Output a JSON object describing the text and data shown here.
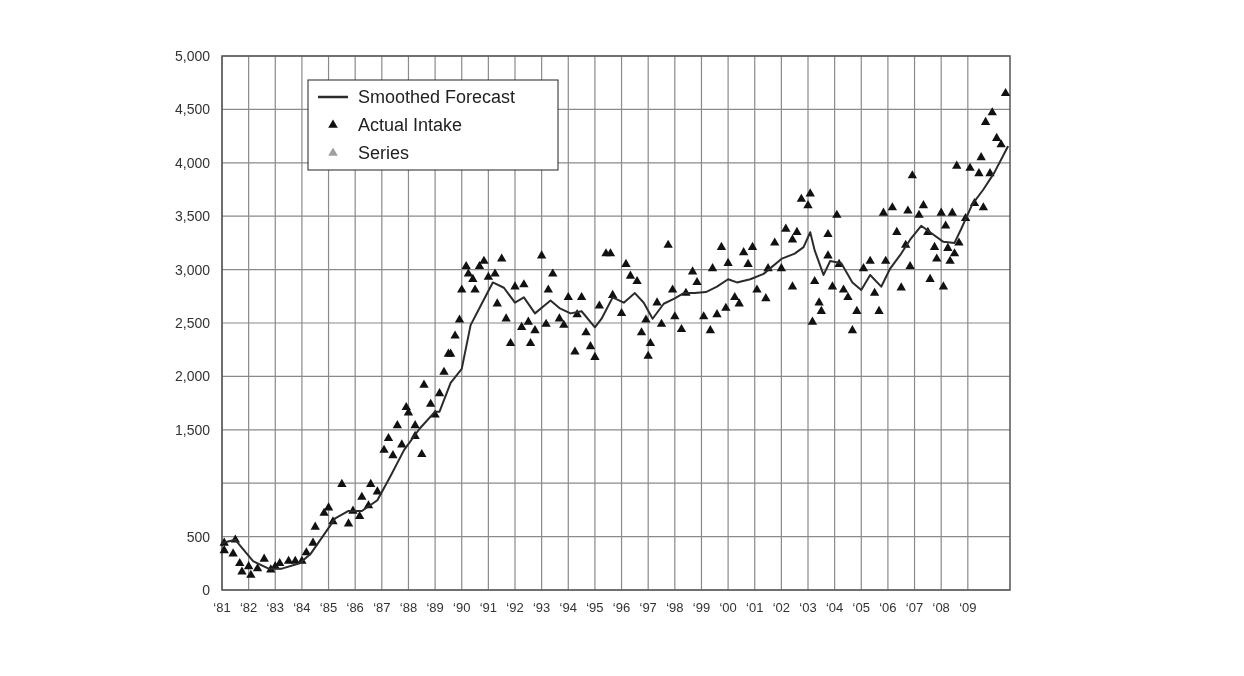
{
  "chart_data": {
    "type": "line",
    "grid": true,
    "legend": "top left",
    "xlim": [
      "1981-01",
      "2010-08"
    ],
    "xticks": [
      {
        "value": "1981",
        "label": "‘81"
      },
      {
        "value": "1982",
        "label": "‘82"
      },
      {
        "value": "1983",
        "label": "‘83"
      },
      {
        "value": "1984",
        "label": "‘84"
      },
      {
        "value": "1985",
        "label": "‘85"
      },
      {
        "value": "1986",
        "label": "‘86"
      },
      {
        "value": "1987",
        "label": "‘87"
      },
      {
        "value": "1988",
        "label": "‘88"
      },
      {
        "value": "1989",
        "label": "‘89"
      },
      {
        "value": "1990",
        "label": "‘90"
      },
      {
        "value": "1991",
        "label": "‘91"
      },
      {
        "value": "1992",
        "label": "‘92"
      },
      {
        "value": "1993",
        "label": "‘93"
      },
      {
        "value": "1994",
        "label": "‘94"
      },
      {
        "value": "1995",
        "label": "‘95"
      },
      {
        "value": "1996",
        "label": "‘96"
      },
      {
        "value": "1997",
        "label": "‘97"
      },
      {
        "value": "1998",
        "label": "‘98"
      },
      {
        "value": "1999",
        "label": "‘99"
      },
      {
        "value": "2000",
        "label": "‘00"
      },
      {
        "value": "2001",
        "label": "‘01"
      },
      {
        "value": "2002",
        "label": "‘02"
      },
      {
        "value": "2003",
        "label": "‘03"
      },
      {
        "value": "2004",
        "label": "‘04"
      },
      {
        "value": "2005",
        "label": "‘05"
      },
      {
        "value": "2006",
        "label": "‘06"
      },
      {
        "value": "2007",
        "label": "‘07"
      },
      {
        "value": "2008",
        "label": "‘08"
      },
      {
        "value": "2009",
        "label": "‘09"
      }
    ],
    "ylim": [
      0,
      5000
    ],
    "yticks": [
      0,
      500,
      {
        "value": 1000,
        "label": null
      },
      {
        "value": 1500,
        "label": "1,500"
      },
      {
        "value": 2000,
        "label": "2,000"
      },
      {
        "value": 2500,
        "label": "2,500"
      },
      {
        "value": 3000,
        "label": "3,000"
      },
      {
        "value": 3500,
        "label": "3,500"
      },
      {
        "value": 4000,
        "label": "4,000"
      },
      {
        "value": 4500,
        "label": "4,500"
      },
      {
        "value": 5000,
        "label": "5,000"
      }
    ],
    "series": [
      {
        "name": "Smoothed Forecast",
        "color": "#2b2b2b",
        "marker": "none",
        "line_style": "solid",
        "x": [
          "1981-01",
          "1981-07",
          "1982-03",
          "1982-10",
          "1983-04",
          "1983-12",
          "1984-05",
          "1984-10",
          "1985-04",
          "1985-10",
          "1986-04",
          "1986-11",
          "1987-05",
          "1987-11",
          "1988-06",
          "1989-01",
          "1989-03",
          "1989-08",
          "1990-01",
          "1990-05",
          "1990-10",
          "1991-03",
          "1991-08",
          "1992-01",
          "1992-05",
          "1992-10",
          "1993-02",
          "1993-05",
          "1993-09",
          "1994-02",
          "1994-07",
          "1995-01",
          "1995-04",
          "1995-09",
          "1996-02",
          "1996-07",
          "1996-11",
          "1997-03",
          "1997-08",
          "1998-01",
          "1998-05",
          "1998-10",
          "1999-03",
          "1999-08",
          "2000-01",
          "2000-05",
          "2000-11",
          "2001-05",
          "2002-01",
          "2002-07",
          "2002-11",
          "2003-02",
          "2003-04",
          "2003-08",
          "2003-11",
          "2004-04",
          "2004-09",
          "2005-01",
          "2005-05",
          "2005-10",
          "2006-02",
          "2006-07",
          "2006-11",
          "2007-04",
          "2007-08",
          "2008-02",
          "2008-07",
          "2008-10",
          "2009-03",
          "2009-08",
          "2010-01",
          "2010-07"
        ],
        "values": [
          440,
          470,
          270,
          200,
          200,
          250,
          340,
          490,
          670,
          740,
          740,
          840,
          1070,
          1310,
          1510,
          1670,
          1670,
          1940,
          2070,
          2480,
          2680,
          2880,
          2830,
          2690,
          2740,
          2590,
          2660,
          2710,
          2640,
          2590,
          2610,
          2460,
          2540,
          2740,
          2690,
          2780,
          2690,
          2540,
          2680,
          2730,
          2780,
          2780,
          2790,
          2840,
          2910,
          2880,
          2910,
          2960,
          3100,
          3150,
          3210,
          3350,
          3180,
          2950,
          3080,
          3060,
          2880,
          2810,
          2950,
          2840,
          3010,
          3150,
          3280,
          3410,
          3350,
          3260,
          3250,
          3380,
          3610,
          3750,
          3910,
          4150
        ]
      },
      {
        "name": "Actual Intake",
        "type": "scatter",
        "color": "#111111",
        "marker": "triangle",
        "x": [
          "1981-02",
          "1981-02",
          "1981-06",
          "1981-07",
          "1981-09",
          "1981-10",
          "1982-01",
          "1982-02",
          "1982-05",
          "1982-08",
          "1982-11",
          "1983-01",
          "1983-03",
          "1983-07",
          "1983-10",
          "1984-01",
          "1984-03",
          "1984-06",
          "1984-07",
          "1984-11",
          "1985-01",
          "1985-03",
          "1985-07",
          "1985-10",
          "1985-12",
          "1986-03",
          "1986-04",
          "1986-07",
          "1986-08",
          "1986-11",
          "1987-02",
          "1987-04",
          "1987-06",
          "1987-08",
          "1987-10",
          "1987-12",
          "1988-01",
          "1988-04",
          "1988-04",
          "1988-07",
          "1988-08",
          "1988-11",
          "1989-01",
          "1989-03",
          "1989-05",
          "1989-07",
          "1989-08",
          "1989-10",
          "1989-12",
          "1990-01",
          "1990-03",
          "1990-04",
          "1990-06",
          "1990-07",
          "1990-09",
          "1990-11",
          "1991-01",
          "1991-04",
          "1991-05",
          "1991-07",
          "1991-09",
          "1991-11",
          "1992-01",
          "1992-04",
          "1992-05",
          "1992-07",
          "1992-08",
          "1992-10",
          "1993-01",
          "1993-03",
          "1993-04",
          "1993-06",
          "1993-09",
          "1993-11",
          "1994-01",
          "1994-04",
          "1994-05",
          "1994-07",
          "1994-09",
          "1994-11",
          "1995-01",
          "1995-03",
          "1995-06",
          "1995-08",
          "1995-09",
          "1996-01",
          "1996-03",
          "1996-05",
          "1996-08",
          "1996-10",
          "1996-12",
          "1997-01",
          "1997-02",
          "1997-05",
          "1997-07",
          "1997-10",
          "1997-12",
          "1998-01",
          "1998-04",
          "1998-06",
          "1998-09",
          "1998-11",
          "1999-02",
          "1999-05",
          "1999-06",
          "1999-08",
          "1999-10",
          "1999-12",
          "2000-01",
          "2000-04",
          "2000-06",
          "2000-08",
          "2000-10",
          "2000-12",
          "2001-02",
          "2001-06",
          "2001-07",
          "2001-10",
          "2002-01",
          "2002-03",
          "2002-06",
          "2002-06",
          "2002-08",
          "2002-10",
          "2003-01",
          "2003-02",
          "2003-03",
          "2003-04",
          "2003-06",
          "2003-07",
          "2003-10",
          "2003-10",
          "2003-12",
          "2004-02",
          "2004-03",
          "2004-05",
          "2004-07",
          "2004-09",
          "2004-11",
          "2005-02",
          "2005-05",
          "2005-07",
          "2005-09",
          "2005-11",
          "2005-12",
          "2006-03",
          "2006-05",
          "2006-07",
          "2006-09",
          "2006-10",
          "2006-11",
          "2006-12",
          "2007-03",
          "2007-05",
          "2007-07",
          "2007-08",
          "2007-10",
          "2007-11",
          "2008-01",
          "2008-02",
          "2008-03",
          "2008-04",
          "2008-05",
          "2008-06",
          "2008-07",
          "2008-08",
          "2008-09",
          "2008-12",
          "2009-02",
          "2009-04",
          "2009-06",
          "2009-07",
          "2009-08",
          "2009-09",
          "2009-11",
          "2009-12",
          "2010-02",
          "2010-04",
          "2010-06"
        ],
        "values": [
          440,
          370,
          340,
          470,
          250,
          170,
          220,
          140,
          200,
          290,
          190,
          220,
          250,
          270,
          270,
          270,
          350,
          440,
          590,
          720,
          770,
          640,
          990,
          620,
          740,
          690,
          870,
          790,
          990,
          920,
          1310,
          1420,
          1260,
          1540,
          1360,
          1710,
          1660,
          1440,
          1540,
          1270,
          1920,
          1740,
          1640,
          1840,
          2040,
          2210,
          2210,
          2380,
          2530,
          2810,
          3030,
          2960,
          2910,
          2810,
          3030,
          3080,
          2930,
          2960,
          2680,
          3100,
          2540,
          2310,
          2840,
          2460,
          2860,
          2510,
          2310,
          2430,
          3130,
          2490,
          2810,
          2960,
          2540,
          2480,
          2740,
          2230,
          2580,
          2740,
          2410,
          2280,
          2180,
          2660,
          3150,
          3150,
          2760,
          2590,
          3050,
          2940,
          2890,
          2410,
          2530,
          2190,
          2310,
          2690,
          2490,
          3230,
          2810,
          2560,
          2440,
          2780,
          2980,
          2880,
          2560,
          2430,
          3010,
          2580,
          3210,
          2640,
          3060,
          2740,
          2680,
          3160,
          3050,
          3210,
          2810,
          2730,
          3010,
          3250,
          3010,
          3380,
          3280,
          2840,
          3350,
          3660,
          3600,
          3710,
          2510,
          2890,
          2690,
          2610,
          3130,
          3330,
          2840,
          3510,
          3050,
          2810,
          2740,
          2430,
          2610,
          3010,
          3080,
          2780,
          2610,
          3530,
          3080,
          3580,
          3350,
          2830,
          3230,
          3550,
          3030,
          3880,
          3510,
          3600,
          3350,
          2910,
          3210,
          3100,
          3530,
          2840,
          3410,
          3200,
          3080,
          3530,
          3150,
          3970,
          3250,
          3480,
          3950,
          3620,
          3900,
          4050,
          3580,
          4380,
          3900,
          4470,
          4230,
          4170,
          4650
        ]
      },
      {
        "name": "Series",
        "type": "scatter",
        "color": "#a0a0a0",
        "marker": "triangle"
      }
    ]
  }
}
